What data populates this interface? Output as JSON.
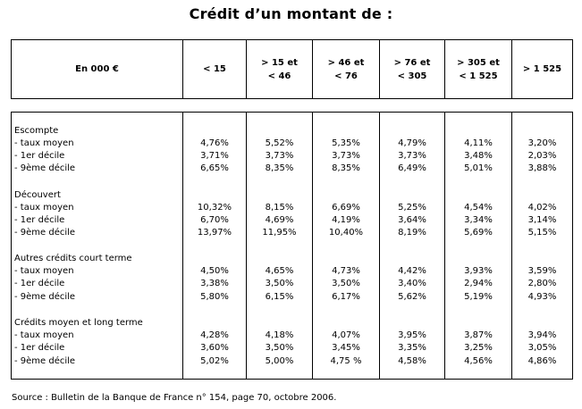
{
  "title": "Crédit d’un montant de :",
  "header": {
    "unit_label": "En 000 €",
    "columns": [
      {
        "line1": "< 15",
        "line2": ""
      },
      {
        "line1": "> 15 et",
        "line2": "< 46"
      },
      {
        "line1": "> 46 et",
        "line2": "< 76"
      },
      {
        "line1": "> 76 et",
        "line2": "< 305"
      },
      {
        "line1": "> 305 et",
        "line2": "< 1 525"
      },
      {
        "line1": "> 1 525",
        "line2": ""
      }
    ]
  },
  "sections": [
    {
      "name": "Escompte",
      "rows": [
        {
          "label": "- taux moyen",
          "values": [
            "4,76%",
            "5,52%",
            "5,35%",
            "4,79%",
            "4,11%",
            "3,20%"
          ]
        },
        {
          "label": "- 1er décile",
          "values": [
            "3,71%",
            "3,73%",
            "3,73%",
            "3,73%",
            "3,48%",
            "2,03%"
          ]
        },
        {
          "label": "- 9ème décile",
          "values": [
            "6,65%",
            "8,35%",
            "8,35%",
            "6,49%",
            "5,01%",
            "3,88%"
          ]
        }
      ]
    },
    {
      "name": "Découvert",
      "rows": [
        {
          "label": "- taux moyen",
          "values": [
            "10,32%",
            "8,15%",
            "6,69%",
            "5,25%",
            "4,54%",
            "4,02%"
          ]
        },
        {
          "label": "- 1er décile",
          "values": [
            "6,70%",
            "4,69%",
            "4,19%",
            "3,64%",
            "3,34%",
            "3,14%"
          ]
        },
        {
          "label": "- 9ème décile",
          "values": [
            "13,97%",
            "11,95%",
            "10,40%",
            "8,19%",
            "5,69%",
            "5,15%"
          ]
        }
      ]
    },
    {
      "name": "Autres crédits court terme",
      "rows": [
        {
          "label": "- taux moyen",
          "values": [
            "4,50%",
            "4,65%",
            "4,73%",
            "4,42%",
            "3,93%",
            "3,59%"
          ]
        },
        {
          "label": "- 1er décile",
          "values": [
            "3,38%",
            "3,50%",
            "3,50%",
            "3,40%",
            "2,94%",
            "2,80%"
          ]
        },
        {
          "label": "- 9ème décile",
          "values": [
            "5,80%",
            "6,15%",
            "6,17%",
            "5,62%",
            "5,19%",
            "4,93%"
          ]
        }
      ]
    },
    {
      "name": "Crédits moyen et long terme",
      "rows": [
        {
          "label": "- taux moyen",
          "values": [
            "4,28%",
            "4,18%",
            "4,07%",
            "3,95%",
            "3,87%",
            "3,94%"
          ]
        },
        {
          "label": "- 1er décile",
          "values": [
            "3,60%",
            "3,50%",
            "3,45%",
            "3,35%",
            "3,25%",
            "3,05%"
          ]
        },
        {
          "label": "- 9ème décile",
          "values": [
            "5,02%",
            "5,00%",
            "4,75 %",
            "4,58%",
            "4,56%",
            "4,86%"
          ]
        }
      ]
    }
  ],
  "source": "Source : Bulletin de la Banque de France n° 154, page 70, octobre 2006."
}
